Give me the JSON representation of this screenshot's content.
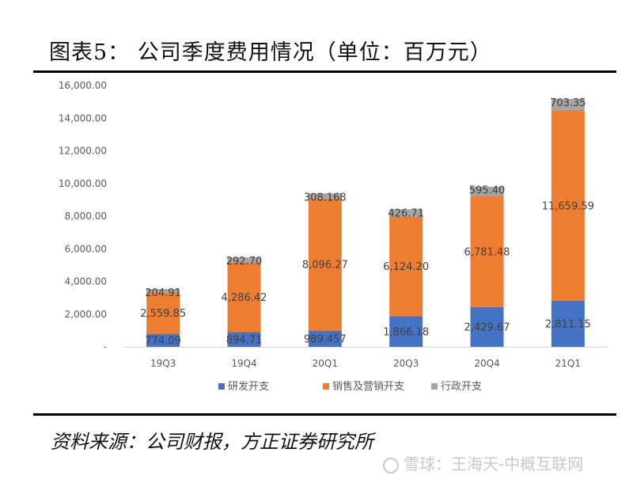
{
  "figure": {
    "title": "图表5：  公司季度费用情况（单位：百万元）",
    "source": "资料来源：公司财报，方正证券研究所",
    "watermark": "雪球：王海天-中概互联网"
  },
  "chart_data": {
    "type": "bar",
    "stacked": true,
    "categories": [
      "19Q3",
      "19Q4",
      "20Q1",
      "20Q3",
      "20Q4",
      "21Q1"
    ],
    "series": [
      {
        "name": "研发开支",
        "color": "#4472C4",
        "values": [
          774.09,
          894.71,
          989.457,
          1866.18,
          2429.67,
          2811.15
        ],
        "labels": [
          "774.09",
          "894.71",
          "989.457",
          "1,866.18",
          "2,429.67",
          "2,811.15"
        ]
      },
      {
        "name": "销售及营销开支",
        "color": "#ED7D31",
        "values": [
          2559.85,
          4286.42,
          8096.27,
          6124.2,
          6781.48,
          11659.59
        ],
        "labels": [
          "2,559.85",
          "4,286.42",
          "8,096.27",
          "6,124.20",
          "6,781.48",
          "11,659.59"
        ]
      },
      {
        "name": "行政开支",
        "color": "#A5A5A5",
        "values": [
          204.91,
          292.7,
          308.168,
          426.71,
          595.4,
          703.35
        ],
        "labels": [
          "204.91",
          "292.70",
          "308.168",
          "426.71",
          "595.40",
          "703.35"
        ]
      }
    ],
    "ylim": [
      0,
      16000
    ],
    "yticks": [
      0,
      2000,
      4000,
      6000,
      8000,
      10000,
      12000,
      14000,
      16000
    ],
    "ytick_labels": [
      "-",
      "2,000.00",
      "4,000.00",
      "6,000.00",
      "8,000.00",
      "10,000.00",
      "12,000.00",
      "14,000.00",
      "16,000.00"
    ],
    "grid": false,
    "legend_position": "bottom"
  }
}
